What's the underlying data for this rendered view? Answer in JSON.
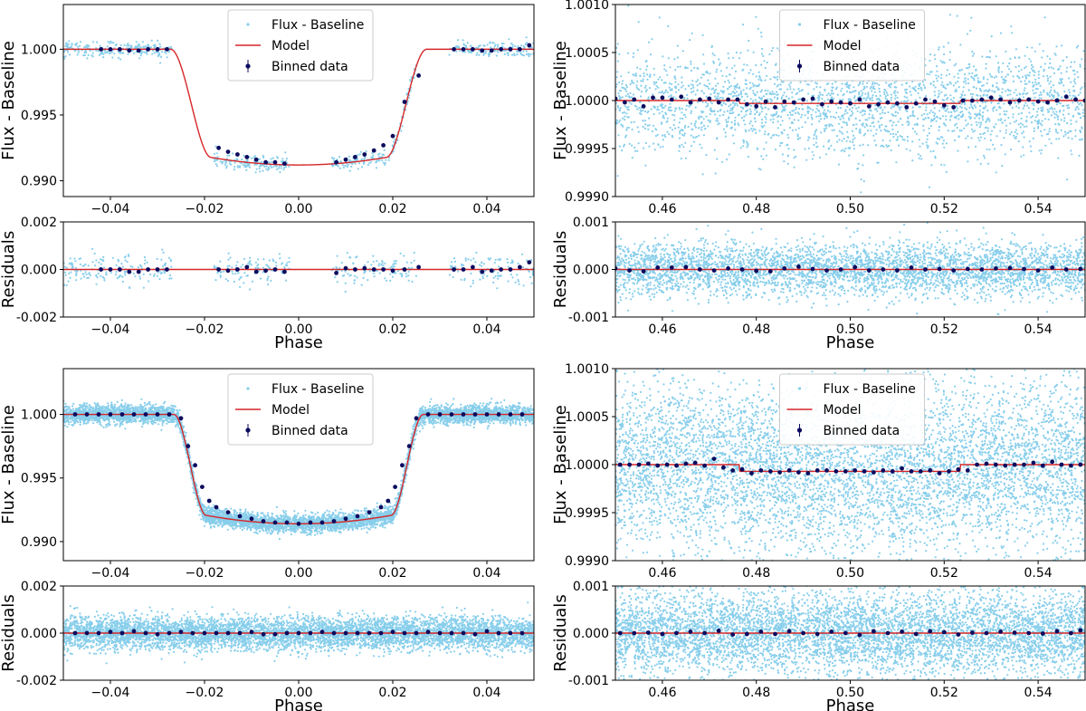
{
  "legend_labels": {
    "flux": "Flux - Baseline",
    "model": "Model",
    "binned": "Binned data"
  },
  "colors": {
    "flux_points": "#87CEEB",
    "model_line": "#d62728",
    "binned_points": "#0b0b5e",
    "axes": "#000000"
  },
  "chart_data": [
    {
      "type": "scatter",
      "panel": "top-left transit",
      "ylabel": "Flux - Baseline",
      "xlim": [
        -0.05,
        0.05
      ],
      "ylim": [
        0.9888,
        1.0034
      ],
      "xticks": [
        -0.04,
        -0.02,
        0.0,
        0.02,
        0.04
      ],
      "xticklabels": [
        "−0.04",
        "−0.02",
        "0.00",
        "0.02",
        "0.04"
      ],
      "yticks": [
        0.99,
        0.995,
        1.0
      ],
      "yticklabels": [
        "0.990",
        "0.995",
        "1.000"
      ],
      "legend": "top-center",
      "gaps": [
        [
          -0.027,
          -0.018
        ],
        [
          -0.002,
          0.007
        ],
        [
          0.025,
          0.032
        ]
      ],
      "model": {
        "kind": "transit",
        "depth": 0.0088,
        "t_contact": 0.0272,
        "ingress": 0.0085,
        "center": 0.0
      },
      "binned": {
        "x": [
          -0.042,
          -0.04,
          -0.038,
          -0.036,
          -0.034,
          -0.032,
          -0.03,
          -0.028,
          -0.017,
          -0.015,
          -0.013,
          -0.011,
          -0.009,
          -0.007,
          -0.005,
          -0.003,
          0.008,
          0.01,
          0.012,
          0.014,
          0.016,
          0.018,
          0.02,
          0.0225,
          0.0255,
          0.033,
          0.035,
          0.037,
          0.039,
          0.041,
          0.043,
          0.045,
          0.047,
          0.049
        ],
        "y": [
          1.0,
          1.0,
          1.0,
          0.9999,
          0.9999,
          1.0,
          1.0,
          1.0,
          0.9925,
          0.9922,
          0.992,
          0.9918,
          0.9916,
          0.9914,
          0.9914,
          0.9913,
          0.9914,
          0.9916,
          0.9918,
          0.992,
          0.9923,
          0.9927,
          0.9934,
          0.996,
          0.998,
          1.0,
          1.0,
          1.0,
          0.9999,
          0.9999,
          1.0,
          1.0,
          1.0,
          1.0003
        ]
      },
      "scatter": {
        "count": 700,
        "sigma": 0.0003,
        "seed": 11
      }
    },
    {
      "type": "scatter",
      "panel": "top-left residuals",
      "ylabel": "Residuals",
      "xlabel": "Phase",
      "xlim": [
        -0.05,
        0.05
      ],
      "ylim": [
        -0.002,
        0.002
      ],
      "xticks": [
        -0.04,
        -0.02,
        0.0,
        0.02,
        0.04
      ],
      "xticklabels": [
        "−0.04",
        "−0.02",
        "0.00",
        "0.02",
        "0.04"
      ],
      "yticks": [
        -0.002,
        0.0,
        0.002
      ],
      "yticklabels": [
        "-0.002",
        "0.000",
        "0.002"
      ],
      "gaps": [
        [
          -0.027,
          -0.018
        ],
        [
          -0.002,
          0.007
        ],
        [
          0.025,
          0.032
        ]
      ],
      "model": {
        "kind": "flat",
        "value": 0.0
      },
      "binned": {
        "x": [
          -0.042,
          -0.04,
          -0.038,
          -0.036,
          -0.034,
          -0.032,
          -0.03,
          -0.028,
          -0.017,
          -0.015,
          -0.013,
          -0.011,
          -0.009,
          -0.007,
          -0.005,
          -0.003,
          0.008,
          0.01,
          0.012,
          0.014,
          0.016,
          0.018,
          0.02,
          0.0225,
          0.0255,
          0.033,
          0.035,
          0.037,
          0.039,
          0.041,
          0.043,
          0.045,
          0.047,
          0.049
        ],
        "y": [
          0.0,
          0.0,
          0.0,
          -0.0001,
          -0.0001,
          0.0,
          0.0,
          0.0,
          0.0,
          -5e-05,
          0.0,
          0.0001,
          -0.0001,
          -5e-05,
          0.0,
          -0.0001,
          -0.00015,
          5e-05,
          0.0,
          5e-05,
          0.0,
          0.0,
          -5e-05,
          0.0,
          0.0001,
          0.0,
          0.0,
          0.0001,
          -0.0001,
          -5e-05,
          0.0,
          0.0,
          0.0001,
          0.0003
        ]
      },
      "scatter": {
        "count": 500,
        "sigma": 0.0003,
        "seed": 12
      }
    },
    {
      "type": "scatter",
      "panel": "top-right eclipse",
      "ylabel": "Flux - Baseline",
      "xlim": [
        0.45,
        0.55
      ],
      "ylim": [
        0.999,
        1.001
      ],
      "xticks": [
        0.46,
        0.48,
        0.5,
        0.52,
        0.54
      ],
      "xticklabels": [
        "0.46",
        "0.48",
        "0.50",
        "0.52",
        "0.54"
      ],
      "yticks": [
        0.999,
        0.9995,
        1.0,
        1.0005,
        1.001
      ],
      "yticklabels": [
        "0.9990",
        "0.9995",
        "1.0000",
        "1.0005",
        "1.0010"
      ],
      "legend": "top-center",
      "model": {
        "kind": "eclipse",
        "depth": 3e-05,
        "start": 0.4765,
        "end": 0.5235,
        "base": 1.0
      },
      "binned": {
        "x": [
          0.45,
          0.452,
          0.454,
          0.456,
          0.458,
          0.46,
          0.462,
          0.464,
          0.466,
          0.468,
          0.47,
          0.472,
          0.474,
          0.476,
          0.478,
          0.48,
          0.482,
          0.484,
          0.486,
          0.488,
          0.49,
          0.492,
          0.494,
          0.496,
          0.498,
          0.5,
          0.502,
          0.504,
          0.506,
          0.508,
          0.51,
          0.512,
          0.514,
          0.516,
          0.518,
          0.52,
          0.522,
          0.524,
          0.526,
          0.528,
          0.53,
          0.532,
          0.534,
          0.536,
          0.538,
          0.54,
          0.542,
          0.544,
          0.546,
          0.548,
          0.55
        ],
        "y": [
          1.00002,
          0.99998,
          1.00001,
          0.99994,
          1.00003,
          1.00003,
          1.00001,
          1.00004,
          0.99998,
          1.00001,
          1.00002,
          0.99998,
          1.00001,
          1.00001,
          0.99996,
          0.99994,
          0.99999,
          0.99993,
          0.99999,
          0.99998,
          1.00001,
          1.00002,
          0.99996,
          0.99999,
          0.99998,
          0.99997,
          1.00001,
          0.99994,
          0.99996,
          0.99998,
          0.99997,
          0.99993,
          0.99997,
          1.00001,
          0.99999,
          0.99995,
          0.99993,
          1.0,
          1.0,
          1.00001,
          1.00003,
          1.00001,
          0.99998,
          1.0,
          1.00001,
          0.99999,
          0.99998,
          1.0,
          1.00004,
          1.00001,
          1.0
        ]
      },
      "scatter": {
        "count": 2600,
        "sigma": 0.00028,
        "seed": 21
      }
    },
    {
      "type": "scatter",
      "panel": "top-right residuals",
      "ylabel": "Residuals",
      "xlabel": "Phase",
      "xlim": [
        0.45,
        0.55
      ],
      "ylim": [
        -0.001,
        0.001
      ],
      "xticks": [
        0.46,
        0.48,
        0.5,
        0.52,
        0.54
      ],
      "xticklabels": [
        "0.46",
        "0.48",
        "0.50",
        "0.52",
        "0.54"
      ],
      "yticks": [
        -0.001,
        0.0,
        0.001
      ],
      "yticklabels": [
        "-0.001",
        "0.000",
        "0.001"
      ],
      "model": {
        "kind": "flat",
        "value": 0.0
      },
      "binned": {
        "x": [
          0.45,
          0.453,
          0.456,
          0.459,
          0.462,
          0.465,
          0.468,
          0.471,
          0.474,
          0.477,
          0.48,
          0.483,
          0.486,
          0.489,
          0.492,
          0.495,
          0.498,
          0.501,
          0.504,
          0.507,
          0.51,
          0.513,
          0.516,
          0.519,
          0.522,
          0.525,
          0.528,
          0.531,
          0.534,
          0.537,
          0.54,
          0.543,
          0.546,
          0.549
        ],
        "y": [
          2e-05,
          -2e-05,
          -4e-05,
          4e-05,
          4e-05,
          5e-05,
          0.0,
          -2e-05,
          2e-05,
          0.0,
          -3e-05,
          -4e-05,
          2e-05,
          6e-05,
          1e-05,
          -2e-05,
          0.0,
          5e-05,
          -2e-05,
          0.0,
          -2e-05,
          4e-05,
          0.0,
          1e-05,
          -2e-05,
          1e-05,
          0.0,
          2e-05,
          3e-05,
          1e-05,
          -2e-05,
          4e-05,
          0.0,
          1e-05
        ]
      },
      "scatter": {
        "count": 4000,
        "sigma": 0.00028,
        "seed": 22
      }
    },
    {
      "type": "scatter",
      "panel": "bottom-left transit",
      "ylabel": "Flux - Baseline",
      "xlim": [
        -0.05,
        0.05
      ],
      "ylim": [
        0.9885,
        1.0036
      ],
      "xticks": [
        -0.04,
        -0.02,
        0.0,
        0.02,
        0.04
      ],
      "xticklabels": [
        "−0.04",
        "−0.02",
        "0.00",
        "0.02",
        "0.04"
      ],
      "yticks": [
        0.99,
        0.995,
        1.0
      ],
      "yticklabels": [
        "0.990",
        "0.995",
        "1.000"
      ],
      "legend": "top-center",
      "model": {
        "kind": "transit",
        "depth": 0.0086,
        "t_contact": 0.0265,
        "ingress": 0.0068,
        "center": 0.0
      },
      "binned": {
        "x": [
          -0.0475,
          -0.045,
          -0.0425,
          -0.04,
          -0.0375,
          -0.035,
          -0.0325,
          -0.03,
          -0.0275,
          -0.025,
          -0.0235,
          -0.022,
          -0.0205,
          -0.019,
          -0.0175,
          -0.015,
          -0.0125,
          -0.01,
          -0.0075,
          -0.005,
          -0.0025,
          0.0,
          0.0025,
          0.005,
          0.0075,
          0.01,
          0.0125,
          0.015,
          0.0175,
          0.019,
          0.0205,
          0.022,
          0.0235,
          0.025,
          0.0275,
          0.03,
          0.0325,
          0.035,
          0.0375,
          0.04,
          0.0425,
          0.045,
          0.0475
        ],
        "y": [
          1.0,
          1.0,
          1.0,
          1.0,
          1.0,
          1.0,
          1.0,
          1.0,
          1.0,
          0.9997,
          0.9975,
          0.996,
          0.9943,
          0.9932,
          0.9927,
          0.9923,
          0.992,
          0.9918,
          0.9916,
          0.9915,
          0.9915,
          0.9914,
          0.9915,
          0.9915,
          0.9916,
          0.9918,
          0.992,
          0.9923,
          0.9927,
          0.9932,
          0.9943,
          0.996,
          0.9975,
          0.9997,
          1.0,
          1.0,
          1.0,
          1.0,
          1.0,
          1.0,
          1.0,
          1.0,
          1.0
        ]
      },
      "scatter": {
        "count": 6000,
        "sigma": 0.00035,
        "seed": 31
      }
    },
    {
      "type": "scatter",
      "panel": "bottom-left residuals",
      "ylabel": "Residuals",
      "xlabel": "Phase",
      "xlim": [
        -0.05,
        0.05
      ],
      "ylim": [
        -0.002,
        0.002
      ],
      "xticks": [
        -0.04,
        -0.02,
        0.0,
        0.02,
        0.04
      ],
      "xticklabels": [
        "−0.04",
        "−0.02",
        "0.00",
        "0.02",
        "0.04"
      ],
      "yticks": [
        -0.002,
        0.0,
        0.002
      ],
      "yticklabels": [
        "-0.002",
        "0.000",
        "0.002"
      ],
      "model": {
        "kind": "flat",
        "value": 0.0
      },
      "binned": {
        "x": [
          -0.0475,
          -0.045,
          -0.0425,
          -0.04,
          -0.0375,
          -0.035,
          -0.0325,
          -0.03,
          -0.0275,
          -0.025,
          -0.0225,
          -0.02,
          -0.0175,
          -0.015,
          -0.0125,
          -0.01,
          -0.0075,
          -0.005,
          -0.0025,
          0.0,
          0.0025,
          0.005,
          0.0075,
          0.01,
          0.0125,
          0.015,
          0.0175,
          0.02,
          0.0225,
          0.025,
          0.0275,
          0.03,
          0.0325,
          0.035,
          0.0375,
          0.04,
          0.0425,
          0.045,
          0.0475
        ],
        "y": [
          0.0,
          0.0,
          0.0,
          5e-05,
          0.0,
          8e-05,
          0.0,
          -5e-05,
          0.0,
          5e-05,
          0.0,
          0.0,
          0.0,
          0.0,
          0.0,
          5e-05,
          -5e-05,
          -5e-05,
          0.0,
          0.0,
          0.0,
          5e-05,
          0.0,
          0.0,
          0.0,
          0.0,
          0.0,
          5e-05,
          0.0,
          0.0,
          5e-05,
          0.0,
          0.0,
          0.0,
          -5e-05,
          8e-05,
          0.0,
          0.0,
          0.0
        ]
      },
      "scatter": {
        "count": 6000,
        "sigma": 0.00035,
        "seed": 32
      }
    },
    {
      "type": "scatter",
      "panel": "bottom-right eclipse",
      "ylabel": "Flux - Baseline",
      "xlim": [
        0.45,
        0.55
      ],
      "ylim": [
        0.999,
        1.001
      ],
      "xticks": [
        0.46,
        0.48,
        0.5,
        0.52,
        0.54
      ],
      "xticklabels": [
        "0.46",
        "0.48",
        "0.50",
        "0.52",
        "0.54"
      ],
      "yticks": [
        0.999,
        0.9995,
        1.0,
        1.0005,
        1.001
      ],
      "yticklabels": [
        "0.9990",
        "0.9995",
        "1.0000",
        "1.0005",
        "1.0010"
      ],
      "legend": "top-center",
      "model": {
        "kind": "eclipse",
        "depth": 7e-05,
        "start": 0.4765,
        "end": 0.5235,
        "base": 1.0
      },
      "binned": {
        "x": [
          0.451,
          0.453,
          0.455,
          0.457,
          0.459,
          0.461,
          0.463,
          0.465,
          0.467,
          0.469,
          0.471,
          0.473,
          0.475,
          0.477,
          0.479,
          0.481,
          0.483,
          0.485,
          0.487,
          0.489,
          0.491,
          0.493,
          0.495,
          0.497,
          0.499,
          0.501,
          0.503,
          0.505,
          0.507,
          0.509,
          0.511,
          0.513,
          0.515,
          0.517,
          0.519,
          0.521,
          0.523,
          0.525,
          0.527,
          0.529,
          0.531,
          0.533,
          0.535,
          0.537,
          0.539,
          0.541,
          0.543,
          0.545,
          0.547,
          0.549
        ],
        "y": [
          1.0,
          1.0,
          1.0,
          1.00001,
          0.99999,
          1.0,
          0.99999,
          1.00001,
          1.00002,
          0.99999,
          1.00006,
          0.99997,
          0.99994,
          0.99995,
          0.99991,
          0.99994,
          0.99993,
          0.99992,
          0.99994,
          0.99992,
          0.99991,
          0.99994,
          0.99994,
          0.99993,
          0.99993,
          0.99994,
          0.99993,
          0.99992,
          0.99994,
          0.99993,
          0.99996,
          0.99993,
          0.99993,
          0.99994,
          0.99991,
          0.99993,
          0.99995,
          0.99994,
          1.0,
          1.00001,
          1.0,
          0.99999,
          1.0,
          1.0,
          1.00002,
          0.99999,
          1.00003,
          1.0,
          0.99999,
          1.0
        ]
      },
      "scatter": {
        "count": 6000,
        "sigma": 0.00045,
        "seed": 41
      }
    },
    {
      "type": "scatter",
      "panel": "bottom-right residuals",
      "ylabel": "Residuals",
      "xlabel": "Phase",
      "xlim": [
        0.45,
        0.55
      ],
      "ylim": [
        -0.001,
        0.001
      ],
      "xticks": [
        0.46,
        0.48,
        0.5,
        0.52,
        0.54
      ],
      "xticklabels": [
        "0.46",
        "0.48",
        "0.50",
        "0.52",
        "0.54"
      ],
      "yticks": [
        -0.001,
        0.0,
        0.001
      ],
      "yticklabels": [
        "-0.001",
        "0.000",
        "0.001"
      ],
      "model": {
        "kind": "flat",
        "value": 0.0
      },
      "binned": {
        "x": [
          0.451,
          0.454,
          0.457,
          0.46,
          0.463,
          0.466,
          0.469,
          0.472,
          0.475,
          0.478,
          0.481,
          0.484,
          0.487,
          0.49,
          0.493,
          0.496,
          0.499,
          0.502,
          0.505,
          0.508,
          0.511,
          0.514,
          0.517,
          0.52,
          0.523,
          0.526,
          0.529,
          0.532,
          0.535,
          0.538,
          0.541,
          0.544,
          0.547,
          0.549
        ],
        "y": [
          0.0,
          0.0,
          1e-05,
          -2e-05,
          0.0,
          3e-05,
          0.0,
          5e-05,
          -3e-05,
          -2e-05,
          3e-05,
          -2e-05,
          4e-05,
          0.0,
          -2e-05,
          3e-05,
          0.0,
          -4e-05,
          4e-05,
          0.0,
          3e-05,
          -2e-05,
          4e-05,
          2e-05,
          -3e-05,
          1e-05,
          0.0,
          3e-05,
          1e-05,
          0.0,
          -1e-05,
          4e-05,
          0.0,
          6e-05
        ]
      },
      "scatter": {
        "count": 6000,
        "sigma": 0.00045,
        "seed": 42
      }
    }
  ]
}
